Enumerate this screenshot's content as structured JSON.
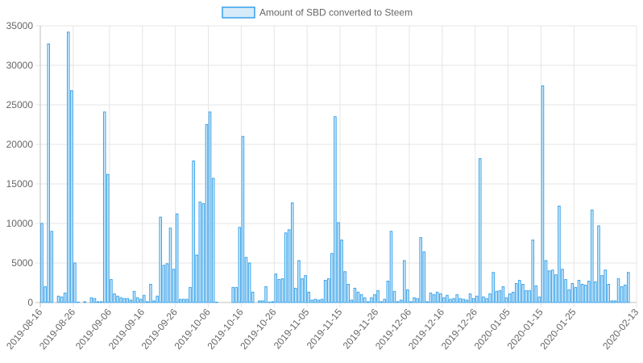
{
  "chart_data": {
    "type": "bar",
    "legend": {
      "label": "Amount of SBD converted to Steem",
      "placement": "top-center"
    },
    "colors": {
      "bar_fill": "#d6ebf8",
      "bar_stroke": "#36a2eb",
      "grid": "#e5e5e5",
      "text": "#666666"
    },
    "grid": true,
    "ylim": [
      0,
      35000
    ],
    "yticks": [
      "0",
      "5000",
      "10000",
      "15000",
      "20000",
      "25000",
      "30000",
      "35000"
    ],
    "x_start": "2019-08-16",
    "xticks": [
      "2019-08-16",
      "2019-08-26",
      "2019-09-06",
      "2019-09-16",
      "2019-09-26",
      "2019-10-06",
      "2019-10-16",
      "2019-10-26",
      "2019-11-05",
      "2019-11-15",
      "2019-11-26",
      "2019-12-06",
      "2019-12-16",
      "2019-12-26",
      "2020-01-05",
      "2020-01-15",
      "2020-01-25",
      "2020-02-13"
    ],
    "values": [
      10000,
      2000,
      32700,
      9000,
      0,
      800,
      700,
      1200,
      34200,
      26800,
      5000,
      50,
      0,
      100,
      0,
      600,
      500,
      100,
      100,
      24100,
      16200,
      2900,
      1100,
      800,
      600,
      500,
      500,
      300,
      1400,
      600,
      400,
      900,
      100,
      2300,
      200,
      800,
      10800,
      4700,
      4900,
      9400,
      4200,
      11200,
      400,
      400,
      400,
      1900,
      17900,
      6000,
      12700,
      12500,
      22500,
      24100,
      15700,
      50,
      0,
      0,
      0,
      0,
      1900,
      1900,
      9500,
      21000,
      5700,
      5000,
      1300,
      0,
      200,
      200,
      2000,
      50,
      100,
      3600,
      2900,
      3000,
      8800,
      9200,
      12600,
      1800,
      5300,
      3000,
      3400,
      1300,
      300,
      400,
      300,
      400,
      2800,
      3000,
      6200,
      23500,
      10100,
      7900,
      3900,
      2300,
      300,
      1800,
      1300,
      1000,
      600,
      100,
      600,
      1000,
      1500,
      100,
      400,
      2700,
      9000,
      1400,
      100,
      300,
      5300,
      1600,
      100,
      600,
      500,
      8200,
      6400,
      100,
      1200,
      1000,
      1300,
      1100,
      600,
      900,
      400,
      500,
      1000,
      500,
      400,
      300,
      1100,
      500,
      800,
      18200,
      700,
      500,
      1100,
      3800,
      1400,
      1500,
      2000,
      600,
      1100,
      1300,
      2400,
      2800,
      2300,
      1500,
      1500,
      7900,
      2100,
      700,
      27400,
      5300,
      4000,
      4100,
      3500,
      12200,
      4200,
      2900,
      1600,
      2400,
      1900,
      2800,
      2300,
      2200,
      2700,
      11700,
      2600,
      9700,
      3400,
      4100,
      2300,
      200,
      200,
      3000,
      2000,
      2200,
      3800
    ]
  }
}
